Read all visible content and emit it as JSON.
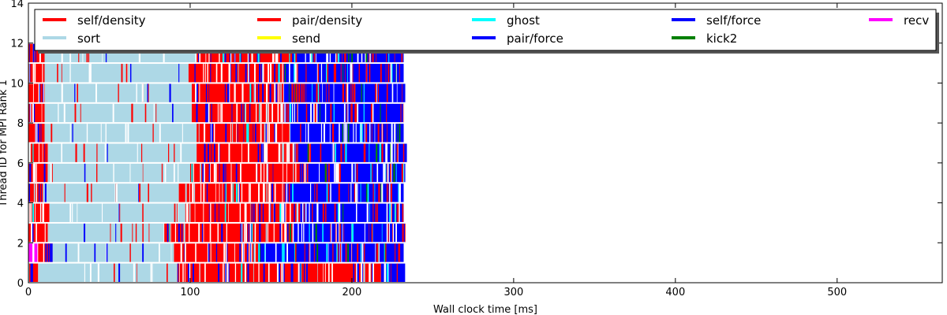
{
  "chart_data": {
    "type": "bar",
    "subtype": "timeline",
    "title": "",
    "xlabel": "Wall clock time [ms]",
    "ylabel": "Thread ID for MPI Rank 1",
    "xlim": [
      0,
      565
    ],
    "ylim": [
      0,
      14
    ],
    "xticks": [
      0,
      100,
      200,
      300,
      400,
      500
    ],
    "yticks": [
      0,
      2,
      4,
      6,
      8,
      10,
      12,
      14
    ],
    "grid": false,
    "legend_position": "top",
    "legend": [
      {
        "key": "self_density",
        "label": "self/density",
        "color": "#ff0000"
      },
      {
        "key": "pair_density",
        "label": "pair/density",
        "color": "#ff0000"
      },
      {
        "key": "ghost",
        "label": "ghost",
        "color": "#00ffff"
      },
      {
        "key": "self_force",
        "label": "self/force",
        "color": "#0000ff"
      },
      {
        "key": "recv",
        "label": "recv",
        "color": "#ff00ff"
      },
      {
        "key": "sort",
        "label": "sort",
        "color": "#add8e6"
      },
      {
        "key": "send",
        "label": "send",
        "color": "#ffff00"
      },
      {
        "key": "pair_force",
        "label": "pair/force",
        "color": "#0000ff"
      },
      {
        "key": "kick2",
        "label": "kick2",
        "color": "#008000"
      }
    ],
    "colors": {
      "density": "#ff0000",
      "sort": "#add8e6",
      "force": "#0000ff",
      "ghost": "#00ffff",
      "kick2": "#008000",
      "recv": "#ff00ff"
    },
    "threads": [
      {
        "thread": 0,
        "segments": [
          {
            "start": 0,
            "end": 6,
            "task": "density"
          },
          {
            "start": 6,
            "end": 92,
            "task": "sort"
          },
          {
            "start": 92,
            "end": 218,
            "task": "density"
          },
          {
            "start": 218,
            "end": 233,
            "task": "force"
          }
        ]
      },
      {
        "thread": 1,
        "segments": [
          {
            "start": 0,
            "end": 6,
            "task": "recv"
          },
          {
            "start": 6,
            "end": 15,
            "task": "density"
          },
          {
            "start": 15,
            "end": 90,
            "task": "sort"
          },
          {
            "start": 90,
            "end": 142,
            "task": "density"
          },
          {
            "start": 142,
            "end": 232,
            "task": "force"
          }
        ]
      },
      {
        "thread": 2,
        "segments": [
          {
            "start": 0,
            "end": 12,
            "task": "density"
          },
          {
            "start": 12,
            "end": 84,
            "task": "sort"
          },
          {
            "start": 84,
            "end": 160,
            "task": "density"
          },
          {
            "start": 160,
            "end": 233,
            "task": "force"
          }
        ]
      },
      {
        "thread": 3,
        "segments": [
          {
            "start": 0,
            "end": 13,
            "task": "density"
          },
          {
            "start": 13,
            "end": 97,
            "task": "sort"
          },
          {
            "start": 97,
            "end": 168,
            "task": "density"
          },
          {
            "start": 168,
            "end": 232,
            "task": "force"
          }
        ]
      },
      {
        "thread": 4,
        "segments": [
          {
            "start": 0,
            "end": 9,
            "task": "density"
          },
          {
            "start": 9,
            "end": 93,
            "task": "sort"
          },
          {
            "start": 93,
            "end": 158,
            "task": "density"
          },
          {
            "start": 158,
            "end": 232,
            "task": "force"
          }
        ]
      },
      {
        "thread": 5,
        "segments": [
          {
            "start": 0,
            "end": 12,
            "task": "density"
          },
          {
            "start": 12,
            "end": 100,
            "task": "sort"
          },
          {
            "start": 100,
            "end": 173,
            "task": "density"
          },
          {
            "start": 173,
            "end": 233,
            "task": "force"
          }
        ]
      },
      {
        "thread": 6,
        "segments": [
          {
            "start": 0,
            "end": 12,
            "task": "density"
          },
          {
            "start": 12,
            "end": 104,
            "task": "sort"
          },
          {
            "start": 104,
            "end": 166,
            "task": "density"
          },
          {
            "start": 166,
            "end": 234,
            "task": "force"
          }
        ]
      },
      {
        "thread": 7,
        "segments": [
          {
            "start": 0,
            "end": 10,
            "task": "density"
          },
          {
            "start": 10,
            "end": 104,
            "task": "sort"
          },
          {
            "start": 104,
            "end": 162,
            "task": "density"
          },
          {
            "start": 162,
            "end": 232,
            "task": "force"
          }
        ]
      },
      {
        "thread": 8,
        "segments": [
          {
            "start": 0,
            "end": 10,
            "task": "density"
          },
          {
            "start": 10,
            "end": 101,
            "task": "sort"
          },
          {
            "start": 101,
            "end": 158,
            "task": "density"
          },
          {
            "start": 158,
            "end": 232,
            "task": "force"
          }
        ]
      },
      {
        "thread": 9,
        "segments": [
          {
            "start": 0,
            "end": 10,
            "task": "density"
          },
          {
            "start": 10,
            "end": 101,
            "task": "sort"
          },
          {
            "start": 101,
            "end": 158,
            "task": "density"
          },
          {
            "start": 158,
            "end": 233,
            "task": "force"
          }
        ]
      },
      {
        "thread": 10,
        "segments": [
          {
            "start": 0,
            "end": 10,
            "task": "density"
          },
          {
            "start": 10,
            "end": 99,
            "task": "sort"
          },
          {
            "start": 99,
            "end": 158,
            "task": "density"
          },
          {
            "start": 158,
            "end": 232,
            "task": "force"
          }
        ]
      },
      {
        "thread": 11,
        "segments": [
          {
            "start": 0,
            "end": 10,
            "task": "density"
          },
          {
            "start": 10,
            "end": 104,
            "task": "sort"
          },
          {
            "start": 104,
            "end": 163,
            "task": "density"
          },
          {
            "start": 163,
            "end": 232,
            "task": "force"
          }
        ]
      }
    ]
  }
}
